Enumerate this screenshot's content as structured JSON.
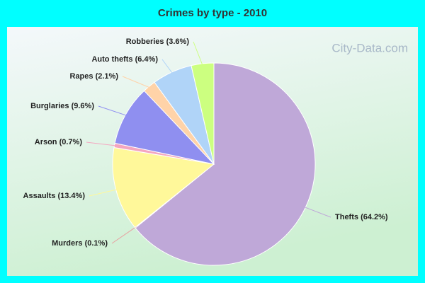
{
  "chart_data": {
    "type": "pie",
    "title": "Crimes by type - 2010",
    "watermark": "City-Data.com",
    "categories": [
      "Thefts",
      "Murders",
      "Assaults",
      "Arson",
      "Burglaries",
      "Rapes",
      "Auto thefts",
      "Robberies"
    ],
    "values": [
      64.2,
      0.1,
      13.4,
      0.7,
      9.6,
      2.1,
      6.4,
      3.6
    ],
    "value_labels": [
      "(64.2%)",
      "(0.1%)",
      "(13.4%)",
      "(0.7%)",
      "(9.6%)",
      "(2.1%)",
      "(6.4%)",
      "(3.6%)"
    ],
    "colors": [
      "#bfa8d8",
      "#e8a0a0",
      "#fff89a",
      "#f4a6c0",
      "#8f8ff0",
      "#ffd3a8",
      "#b0d4f8",
      "#ccff80"
    ]
  }
}
